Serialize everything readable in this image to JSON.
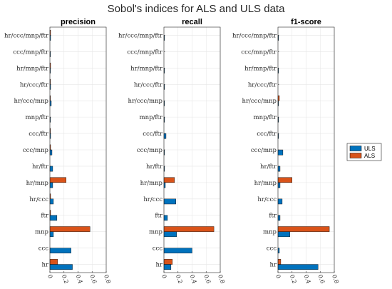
{
  "title": "Sobol's indices for ALS and ULS data",
  "colors": {
    "ULS": "#0072BD",
    "ALS": "#D95319",
    "grid": "#e6e6e6",
    "axis": "#262626"
  },
  "chart_data": [
    {
      "type": "bar",
      "orientation": "horizontal",
      "title": "precision",
      "xlim": [
        0,
        0.8
      ],
      "xticks": [
        "0",
        "0.2",
        "0.4",
        "0.6",
        "0.8"
      ],
      "grid": true,
      "categories": [
        "hr",
        "ccc",
        "mnp",
        "ftr",
        "hr/ccc",
        "hr/mnp",
        "hr/ftr",
        "ccc/mnp",
        "ccc/ftr",
        "mnp/ftr",
        "hr/ccc/mnp",
        "hr/ccc/ftr",
        "hr/mnp/ftr",
        "ccc/mnp/ftr",
        "hr/ccc/mnp/ftr"
      ],
      "series": [
        {
          "name": "ULS",
          "values": [
            0.32,
            0.3,
            0.05,
            0.1,
            0.05,
            0.04,
            0.04,
            0.03,
            0.01,
            0.005,
            0.02,
            0.01,
            0.005,
            0.005,
            0.01
          ]
        },
        {
          "name": "ALS",
          "values": [
            0.11,
            0.0,
            0.57,
            0.01,
            0.01,
            0.23,
            0.0,
            0.01,
            0.005,
            0.0,
            0.005,
            0.005,
            0.01,
            0.0,
            0.01
          ]
        }
      ]
    },
    {
      "type": "bar",
      "orientation": "horizontal",
      "title": "recall",
      "xlim": [
        0,
        0.8
      ],
      "xticks": [
        "0",
        "0.2",
        "0.4",
        "0.6",
        "0.8"
      ],
      "grid": true,
      "categories": [
        "hr",
        "ccc",
        "mnp",
        "ftr",
        "hr/ccc",
        "hr/mnp",
        "hr/ftr",
        "ccc/mnp",
        "ccc/ftr",
        "mnp/ftr",
        "hr/ccc/mnp",
        "hr/ccc/ftr",
        "hr/mnp/ftr",
        "ccc/mnp/ftr",
        "hr/ccc/mnp/ftr"
      ],
      "series": [
        {
          "name": "ULS",
          "values": [
            0.1,
            0.4,
            0.18,
            0.05,
            0.17,
            0.02,
            0.005,
            0.005,
            0.03,
            0.005,
            0.005,
            0.005,
            0.005,
            0.0,
            0.005
          ]
        },
        {
          "name": "ALS",
          "values": [
            0.12,
            0.0,
            0.71,
            0.0,
            0.0,
            0.15,
            0.0,
            0.0,
            0.0,
            0.0,
            0.0,
            0.0,
            0.0,
            0.0,
            0.0
          ]
        }
      ]
    },
    {
      "type": "bar",
      "orientation": "horizontal",
      "title": "f1-score",
      "xlim": [
        0,
        0.8
      ],
      "xticks": [
        "0",
        "0.2",
        "0.4",
        "0.6",
        "0.8"
      ],
      "grid": true,
      "categories": [
        "hr",
        "ccc",
        "mnp",
        "ftr",
        "hr/ccc",
        "hr/mnp",
        "hr/ftr",
        "ccc/mnp",
        "ccc/ftr",
        "mnp/ftr",
        "hr/ccc/mnp",
        "hr/ccc/ftr",
        "hr/mnp/ftr",
        "ccc/mnp/ftr",
        "hr/ccc/mnp/ftr"
      ],
      "series": [
        {
          "name": "ULS",
          "values": [
            0.57,
            0.02,
            0.17,
            0.03,
            0.06,
            0.03,
            0.03,
            0.07,
            0.005,
            0.005,
            0.005,
            0.0,
            0.005,
            0.0,
            0.005
          ]
        },
        {
          "name": "ALS",
          "values": [
            0.04,
            0.0,
            0.73,
            0.0,
            0.0,
            0.2,
            0.0,
            0.0,
            0.0,
            0.0,
            0.02,
            0.0,
            0.0,
            0.0,
            0.0
          ]
        }
      ]
    }
  ],
  "legend": {
    "position": "right",
    "entries": [
      "ULS",
      "ALS"
    ]
  }
}
